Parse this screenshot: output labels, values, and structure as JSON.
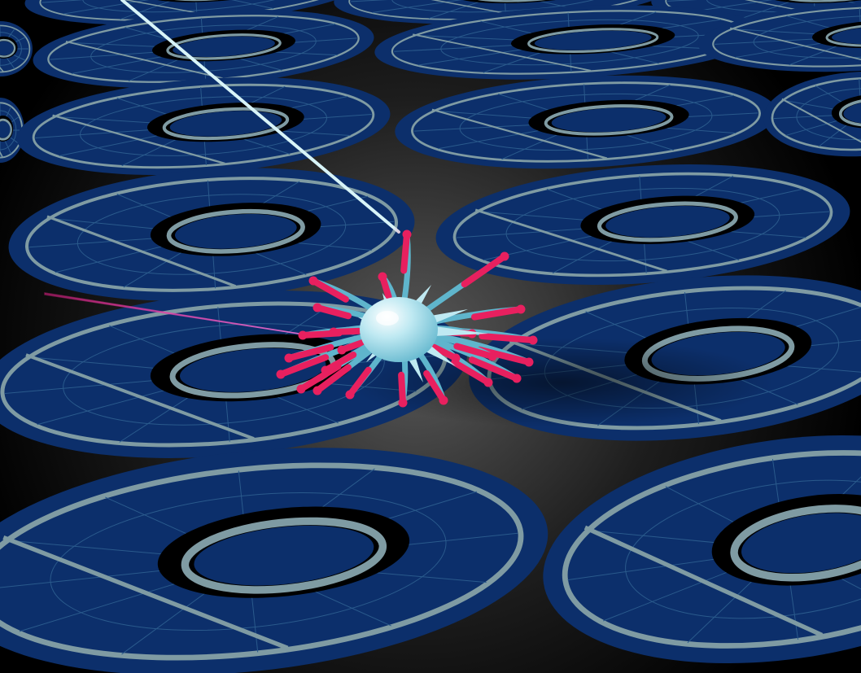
{
  "scene": {
    "colors": {
      "floor_center": "#5a5a5a",
      "floor_edge": "#000000",
      "disc_fill": "#0c2f6b",
      "disc_ring": "#7f9ba3",
      "disc_grid": "#2a5a8c",
      "disc_hole": "#000000",
      "creature_body": "#bfe9f2",
      "creature_shade": "#5fb5cc",
      "tentacle_tip": "#e8205f",
      "tether_light": "#d8f4f8",
      "tether_pink": "#e8208a"
    },
    "icons": [
      "target-disc",
      "spiky-creature",
      "tether-beam"
    ]
  }
}
